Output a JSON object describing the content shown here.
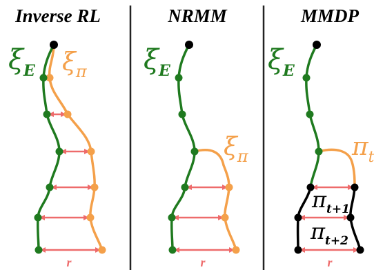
{
  "colors": {
    "expert": "#1f7a1f",
    "policy": "#f4a04a",
    "rollout": "#000000",
    "distance": "#ee6b6b",
    "divider": "#222222"
  },
  "panels": [
    {
      "title": "Inverse RL",
      "expert_sym": "ξ",
      "expert_sub": "E",
      "policy_sym": "ξ",
      "policy_sub": "π",
      "distance_label": "r"
    },
    {
      "title": "NRMM",
      "expert_sym": "ξ",
      "expert_sub": "E",
      "policy_sym": "ξ",
      "policy_sub": "π",
      "distance_label": "r"
    },
    {
      "title": "MMDP",
      "expert_sym": "ξ",
      "expert_sub": "E",
      "policy_sym": "π",
      "policy_sub": "t",
      "step1_sym": "π",
      "step1_sub": "t+1",
      "step2_sym": "π",
      "step2_sub": "t+2",
      "distance_label": "r"
    }
  ]
}
